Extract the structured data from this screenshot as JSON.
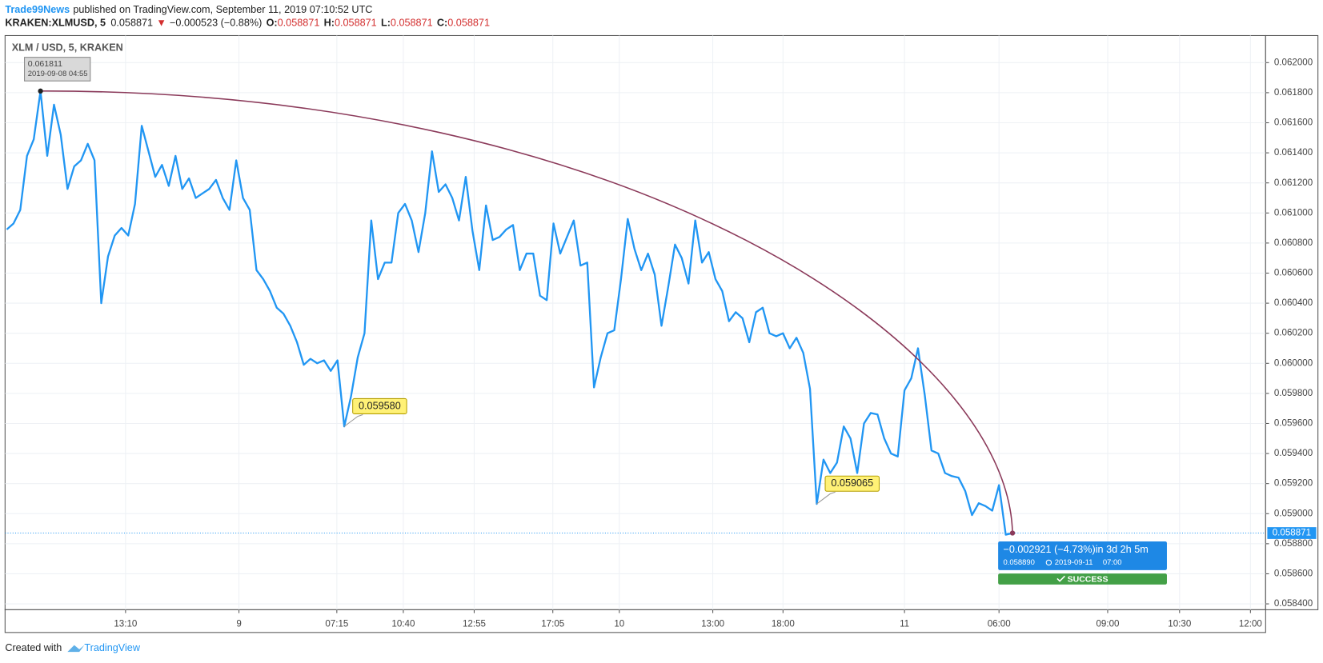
{
  "header": {
    "author": "Trade99News",
    "published": "published on TradingView.com, September 11, 2019 07:10:52 UTC",
    "symbol": "KRAKEN:XLMUSD, 5",
    "price": "0.058871",
    "arrow": "▼",
    "change": "−0.000523 (−0.88%)",
    "ohlc": [
      {
        "key": "O:",
        "value": "0.058871"
      },
      {
        "key": "H:",
        "value": "0.058871"
      },
      {
        "key": "L:",
        "value": "0.058871"
      },
      {
        "key": "C:",
        "value": "0.058871"
      }
    ]
  },
  "chart_data": {
    "type": "line",
    "title": "XLM / USD, 5, KRAKEN",
    "color": "#2196f3",
    "values": [
      0.06089,
      0.06093,
      0.06102,
      0.06138,
      0.06149,
      0.061811,
      0.06138,
      0.06172,
      0.06152,
      0.06116,
      0.06131,
      0.06135,
      0.06146,
      0.06135,
      0.0604,
      0.06071,
      0.06085,
      0.0609,
      0.06085,
      0.06106,
      0.06158,
      0.06141,
      0.06124,
      0.06132,
      0.06118,
      0.06138,
      0.06116,
      0.06123,
      0.0611,
      0.06113,
      0.06116,
      0.06122,
      0.0611,
      0.06102,
      0.06135,
      0.0611,
      0.06102,
      0.06062,
      0.06056,
      0.06048,
      0.06037,
      0.06033,
      0.06025,
      0.06014,
      0.05999,
      0.06003,
      0.06,
      0.06002,
      0.05995,
      0.06002,
      0.05958,
      0.05978,
      0.06004,
      0.0602,
      0.06095,
      0.06056,
      0.06067,
      0.06067,
      0.061,
      0.06106,
      0.06095,
      0.06074,
      0.061,
      0.06141,
      0.06114,
      0.06119,
      0.0611,
      0.06095,
      0.06124,
      0.06088,
      0.06062,
      0.06105,
      0.06082,
      0.06084,
      0.06089,
      0.06092,
      0.06062,
      0.06073,
      0.06073,
      0.06045,
      0.06042,
      0.06093,
      0.06073,
      0.06084,
      0.06095,
      0.06065,
      0.06067,
      0.05984,
      0.06004,
      0.0602,
      0.06022,
      0.06056,
      0.06096,
      0.06076,
      0.06062,
      0.06073,
      0.06059,
      0.06025,
      0.06051,
      0.06079,
      0.0607,
      0.06053,
      0.06095,
      0.06067,
      0.06074,
      0.06056,
      0.06048,
      0.06028,
      0.06034,
      0.0603,
      0.06014,
      0.06034,
      0.06037,
      0.0602,
      0.06018,
      0.0602,
      0.0601,
      0.06017,
      0.06007,
      0.05983,
      0.059065,
      0.05936,
      0.05927,
      0.05934,
      0.05958,
      0.0595,
      0.05927,
      0.0596,
      0.05967,
      0.05966,
      0.0595,
      0.0594,
      0.05938,
      0.05982,
      0.0599,
      0.0601,
      0.05979,
      0.05942,
      0.0594,
      0.05927,
      0.05925,
      0.05924,
      0.05915,
      0.05899,
      0.05907,
      0.05905,
      0.05902,
      0.05919,
      0.05886,
      0.058871
    ],
    "xlim": [
      -0.25,
      186.5
    ],
    "xticks": [
      {
        "value": 17.6,
        "label": "13:10"
      },
      {
        "value": 34.4,
        "label": "9"
      },
      {
        "value": 48.9,
        "label": "07:15"
      },
      {
        "value": 58.75,
        "label": "10:40"
      },
      {
        "value": 69.25,
        "label": "12:55"
      },
      {
        "value": 80.9,
        "label": "17:05"
      },
      {
        "value": 90.75,
        "label": "10"
      },
      {
        "value": 104.6,
        "label": "13:00"
      },
      {
        "value": 115,
        "label": "18:00"
      },
      {
        "value": 133,
        "label": "11"
      },
      {
        "value": 147,
        "label": "06:00"
      },
      {
        "value": 163.1,
        "label": "09:00"
      },
      {
        "value": 173.75,
        "label": "10:30"
      },
      {
        "value": 184.25,
        "label": "12:00"
      }
    ],
    "ylim": [
      0.058361,
      0.06218
    ],
    "yticks": [
      {
        "value": 0.0584,
        "label": "0.058400"
      },
      {
        "value": 0.0586,
        "label": "0.058600"
      },
      {
        "value": 0.0588,
        "label": "0.058800"
      },
      {
        "value": 0.059,
        "label": "0.059000"
      },
      {
        "value": 0.0592,
        "label": "0.059200"
      },
      {
        "value": 0.0594,
        "label": "0.059400"
      },
      {
        "value": 0.0596,
        "label": "0.059600"
      },
      {
        "value": 0.0598,
        "label": "0.059800"
      },
      {
        "value": 0.06,
        "label": "0.060000"
      },
      {
        "value": 0.0602,
        "label": "0.060200"
      },
      {
        "value": 0.0604,
        "label": "0.060400"
      },
      {
        "value": 0.0606,
        "label": "0.060600"
      },
      {
        "value": 0.0608,
        "label": "0.060800"
      },
      {
        "value": 0.061,
        "label": "0.061000"
      },
      {
        "value": 0.0612,
        "label": "0.061200"
      },
      {
        "value": 0.0614,
        "label": "0.061400"
      },
      {
        "value": 0.0616,
        "label": "0.061600"
      },
      {
        "value": 0.0618,
        "label": "0.061800"
      },
      {
        "value": 0.062,
        "label": "0.062000"
      }
    ],
    "grid": true,
    "last_price": {
      "value": 0.058871,
      "label": "0.058871"
    },
    "annotations": [
      {
        "value": 0.061811,
        "label": "0.061811",
        "time": "2019-09-08 04:55"
      },
      {
        "value": 0.05958,
        "label": "0.059580"
      },
      {
        "value": 0.059065,
        "label": "0.059065"
      }
    ],
    "measure": {
      "text": "−0.002921 (−4.73%)in 3d 2h 5m",
      "price": "0.058890",
      "date": "2019-09-11",
      "time": "07:00",
      "status": "SUCCESS"
    }
  },
  "footer": {
    "created": "Created with",
    "brand": "TradingView"
  }
}
